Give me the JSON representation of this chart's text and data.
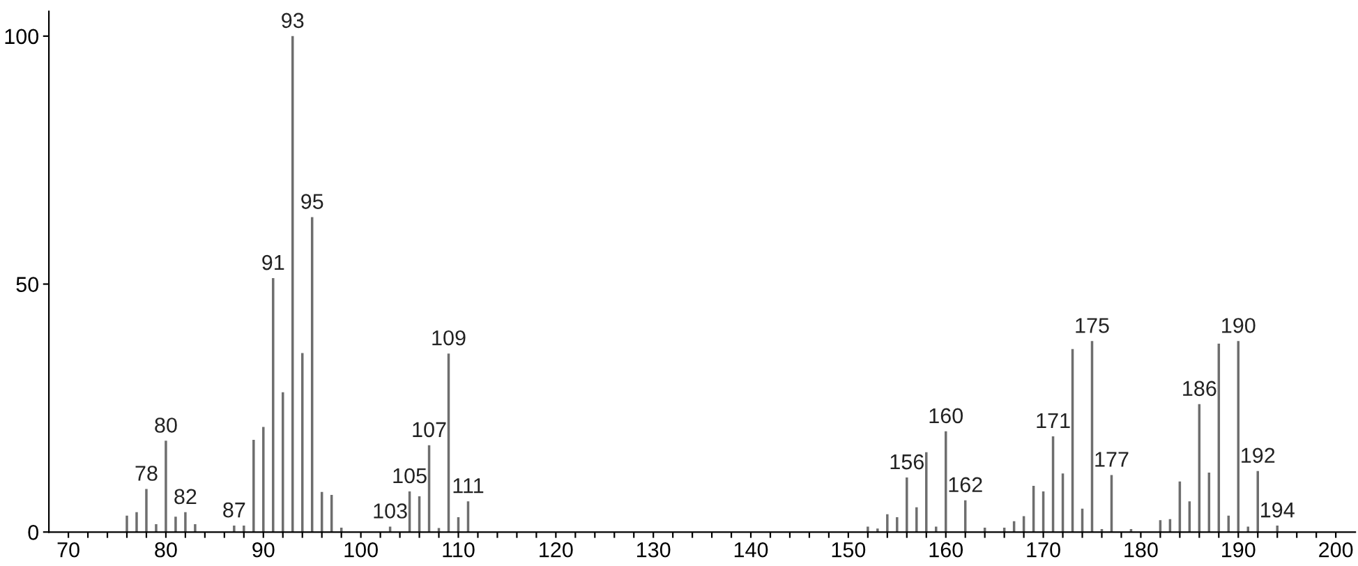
{
  "chart_data": {
    "type": "bar",
    "color": "#6e6e6e",
    "x": [
      76,
      77,
      78,
      79,
      80,
      81,
      82,
      83,
      87,
      88,
      89,
      90,
      91,
      92,
      93,
      94,
      95,
      96,
      97,
      98,
      103,
      105,
      106,
      107,
      108,
      109,
      110,
      111,
      152,
      153,
      154,
      155,
      156,
      157,
      158,
      159,
      160,
      162,
      164,
      166,
      167,
      168,
      169,
      170,
      171,
      172,
      173,
      174,
      175,
      176,
      177,
      179,
      182,
      183,
      184,
      185,
      186,
      187,
      188,
      189,
      190,
      191,
      192,
      194
    ],
    "values": [
      3.3,
      4,
      8.7,
      1.6,
      18.4,
      3.1,
      4,
      1.6,
      1.3,
      1.3,
      18.6,
      21.2,
      51.2,
      28.2,
      100,
      36.1,
      63.5,
      8.1,
      7.5,
      0.9,
      1.1,
      8.2,
      7.2,
      17.5,
      0.8,
      36,
      3,
      6.2,
      1.1,
      0.7,
      3.6,
      3,
      11,
      5,
      16.1,
      1.1,
      20.3,
      6.4,
      0.9,
      0.9,
      2.2,
      3.2,
      9.3,
      8.2,
      19.3,
      11.8,
      36.9,
      4.7,
      38.5,
      0.6,
      11.5,
      0.6,
      2.4,
      2.6,
      10.2,
      6.2,
      25.8,
      12,
      38,
      3.3,
      38.5,
      1.1,
      12.3,
      1.3
    ],
    "annotations": [
      {
        "text": "78",
        "x": 78,
        "y": 8.7
      },
      {
        "text": "80",
        "x": 80,
        "y": 18.4
      },
      {
        "text": "82",
        "x": 82,
        "y": 4
      },
      {
        "text": "87",
        "x": 87,
        "y": 1.3
      },
      {
        "text": "91",
        "x": 91,
        "y": 51.2
      },
      {
        "text": "93",
        "x": 93,
        "y": 100
      },
      {
        "text": "95",
        "x": 95,
        "y": 63.5
      },
      {
        "text": "103",
        "x": 103,
        "y": 1.1
      },
      {
        "text": "105",
        "x": 105,
        "y": 8.2
      },
      {
        "text": "107",
        "x": 107,
        "y": 17.5
      },
      {
        "text": "109",
        "x": 109,
        "y": 36
      },
      {
        "text": "111",
        "x": 111,
        "y": 6.2
      },
      {
        "text": "156",
        "x": 156,
        "y": 11
      },
      {
        "text": "160",
        "x": 160,
        "y": 20.3
      },
      {
        "text": "162",
        "x": 162,
        "y": 6.4
      },
      {
        "text": "171",
        "x": 171,
        "y": 19.3
      },
      {
        "text": "175",
        "x": 175,
        "y": 38.5
      },
      {
        "text": "177",
        "x": 177,
        "y": 11.5
      },
      {
        "text": "186",
        "x": 186,
        "y": 25.8
      },
      {
        "text": "190",
        "x": 190,
        "y": 38.5
      },
      {
        "text": "192",
        "x": 192,
        "y": 12.3
      },
      {
        "text": "194",
        "x": 194,
        "y": 1.3
      }
    ],
    "xlim": [
      68,
      202
    ],
    "ylim": [
      0,
      105
    ],
    "xticks": [
      70,
      {
        "value": 72,
        "label": null
      },
      {
        "value": 74,
        "label": null
      },
      {
        "value": 76,
        "label": null
      },
      {
        "value": 78,
        "label": null
      },
      80,
      {
        "value": 82,
        "label": null
      },
      {
        "value": 84,
        "label": null
      },
      {
        "value": 86,
        "label": null
      },
      {
        "value": 88,
        "label": null
      },
      90,
      {
        "value": 92,
        "label": null
      },
      {
        "value": 94,
        "label": null
      },
      {
        "value": 96,
        "label": null
      },
      {
        "value": 98,
        "label": null
      },
      100,
      {
        "value": 102,
        "label": null
      },
      {
        "value": 104,
        "label": null
      },
      {
        "value": 106,
        "label": null
      },
      {
        "value": 108,
        "label": null
      },
      110,
      {
        "value": 112,
        "label": null
      },
      {
        "value": 114,
        "label": null
      },
      {
        "value": 116,
        "label": null
      },
      {
        "value": 118,
        "label": null
      },
      120,
      {
        "value": 122,
        "label": null
      },
      {
        "value": 124,
        "label": null
      },
      {
        "value": 126,
        "label": null
      },
      {
        "value": 128,
        "label": null
      },
      130,
      {
        "value": 132,
        "label": null
      },
      {
        "value": 134,
        "label": null
      },
      {
        "value": 136,
        "label": null
      },
      {
        "value": 138,
        "label": null
      },
      140,
      {
        "value": 142,
        "label": null
      },
      {
        "value": 144,
        "label": null
      },
      {
        "value": 146,
        "label": null
      },
      {
        "value": 148,
        "label": null
      },
      150,
      {
        "value": 152,
        "label": null
      },
      {
        "value": 154,
        "label": null
      },
      {
        "value": 156,
        "label": null
      },
      {
        "value": 158,
        "label": null
      },
      160,
      {
        "value": 162,
        "label": null
      },
      {
        "value": 164,
        "label": null
      },
      {
        "value": 166,
        "label": null
      },
      {
        "value": 168,
        "label": null
      },
      170,
      {
        "value": 172,
        "label": null
      },
      {
        "value": 174,
        "label": null
      },
      {
        "value": 176,
        "label": null
      },
      {
        "value": 178,
        "label": null
      },
      180,
      {
        "value": 182,
        "label": null
      },
      {
        "value": 184,
        "label": null
      },
      {
        "value": 186,
        "label": null
      },
      {
        "value": 188,
        "label": null
      },
      190,
      {
        "value": 192,
        "label": null
      },
      {
        "value": 194,
        "label": null
      },
      {
        "value": 196,
        "label": null
      },
      {
        "value": 198,
        "label": null
      },
      200
    ],
    "yticks": [
      0,
      50,
      100
    ],
    "grid": false
  }
}
